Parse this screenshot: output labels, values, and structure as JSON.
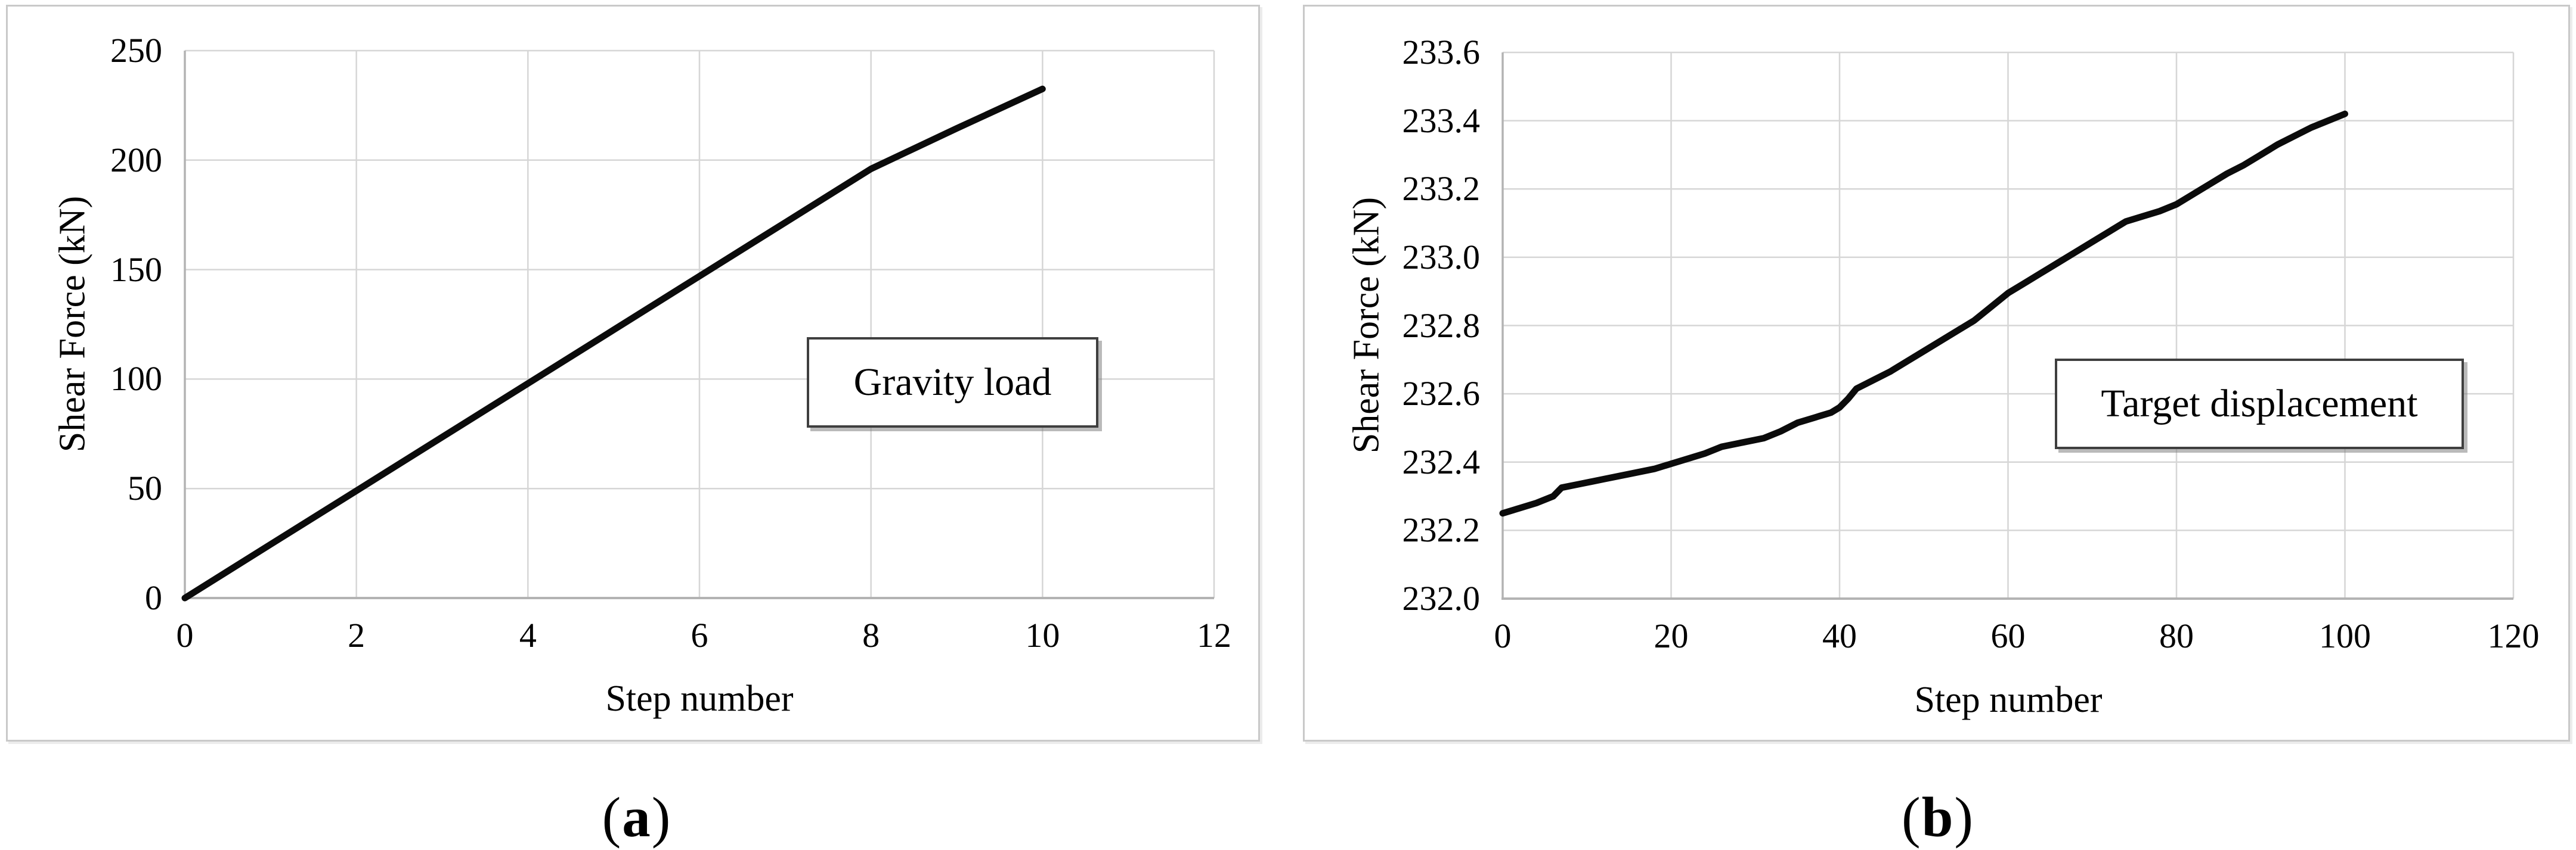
{
  "figure": {
    "captions": {
      "a": {
        "pre": "(",
        "letter": "a",
        "post": ")"
      },
      "b": {
        "pre": "(",
        "letter": "b",
        "post": ")"
      }
    }
  },
  "colors": {
    "series_line": "#0b0b0b",
    "gridline": "#d6d6d6",
    "axis_line": "#b3b3b3",
    "annotation_border": "#3f3f3f",
    "panel_border": "#c9c9c9",
    "background": "#ffffff"
  },
  "chart_data": [
    {
      "id": "a",
      "type": "line",
      "title": "",
      "xlabel": "Step number",
      "ylabel": "Shear Force (kN)",
      "annotation": "Gravity load",
      "legend_position": "none",
      "grid": true,
      "xlim": [
        0,
        12
      ],
      "ylim": [
        0,
        250
      ],
      "xtick_values": [
        0,
        2,
        4,
        6,
        8,
        10,
        12
      ],
      "xtick_labels": [
        "0",
        "2",
        "4",
        "6",
        "8",
        "10",
        "12"
      ],
      "ytick_values": [
        0,
        50,
        100,
        150,
        200,
        250
      ],
      "ytick_labels": [
        "0",
        "50",
        "100",
        "150",
        "200",
        "250"
      ],
      "series": [
        {
          "name": "Gravity load shear force",
          "points": [
            [
              0,
              0
            ],
            [
              1,
              24.5
            ],
            [
              2,
              49
            ],
            [
              3,
              73.5
            ],
            [
              4,
              98
            ],
            [
              5,
              122.5
            ],
            [
              6,
              147
            ],
            [
              7,
              171.5
            ],
            [
              8,
              196
            ],
            [
              9,
              214.5
            ],
            [
              10,
              232.5
            ]
          ]
        }
      ]
    },
    {
      "id": "b",
      "type": "line",
      "title": "",
      "xlabel": "Step number",
      "ylabel": "Shear Force (kN)",
      "annotation": "Target displacement",
      "legend_position": "none",
      "grid": true,
      "xlim": [
        0,
        120
      ],
      "ylim": [
        232.0,
        233.6
      ],
      "xtick_values": [
        0,
        20,
        40,
        60,
        80,
        100,
        120
      ],
      "xtick_labels": [
        "0",
        "20",
        "40",
        "60",
        "80",
        "100",
        "120"
      ],
      "ytick_values": [
        232.0,
        232.2,
        232.4,
        232.6,
        232.8,
        233.0,
        233.2,
        233.4,
        233.6
      ],
      "ytick_labels": [
        "232.0",
        "232.2",
        "232.4",
        "232.6",
        "232.8",
        "233.0",
        "233.2",
        "233.4",
        "233.6"
      ],
      "series": [
        {
          "name": "Target displacement shear force",
          "points": [
            [
              0,
              232.25
            ],
            [
              2,
              232.265
            ],
            [
              4,
              232.28
            ],
            [
              6,
              232.3
            ],
            [
              7,
              232.325
            ],
            [
              9,
              232.335
            ],
            [
              12,
              232.35
            ],
            [
              15,
              232.365
            ],
            [
              18,
              232.38
            ],
            [
              20,
              232.395
            ],
            [
              22,
              232.41
            ],
            [
              24,
              232.425
            ],
            [
              26,
              232.445
            ],
            [
              28,
              232.455
            ],
            [
              30,
              232.465
            ],
            [
              31,
              232.47
            ],
            [
              33,
              232.49
            ],
            [
              35,
              232.515
            ],
            [
              37,
              232.53
            ],
            [
              39,
              232.545
            ],
            [
              40,
              232.56
            ],
            [
              41,
              232.585
            ],
            [
              42,
              232.615
            ],
            [
              44,
              232.64
            ],
            [
              46,
              232.665
            ],
            [
              48,
              232.695
            ],
            [
              50,
              232.725
            ],
            [
              52,
              232.755
            ],
            [
              54,
              232.785
            ],
            [
              56,
              232.815
            ],
            [
              58,
              232.855
            ],
            [
              60,
              232.895
            ],
            [
              62,
              232.925
            ],
            [
              64,
              232.955
            ],
            [
              66,
              232.985
            ],
            [
              68,
              233.015
            ],
            [
              70,
              233.045
            ],
            [
              72,
              233.075
            ],
            [
              74,
              233.105
            ],
            [
              76,
              233.12
            ],
            [
              78,
              233.135
            ],
            [
              80,
              233.155
            ],
            [
              82,
              233.185
            ],
            [
              84,
              233.215
            ],
            [
              86,
              233.245
            ],
            [
              88,
              233.27
            ],
            [
              90,
              233.3
            ],
            [
              92,
              233.33
            ],
            [
              94,
              233.355
            ],
            [
              96,
              233.38
            ],
            [
              98,
              233.4
            ],
            [
              100,
              233.42
            ]
          ]
        }
      ]
    }
  ]
}
